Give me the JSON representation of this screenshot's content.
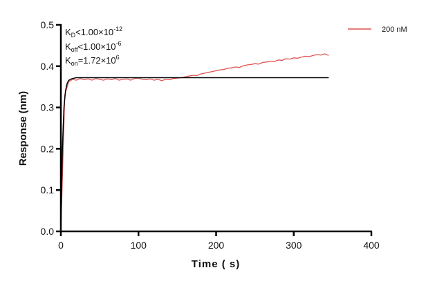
{
  "chart_data": {
    "type": "line",
    "xlabel": "Time ( s)",
    "ylabel": "Response (nm)",
    "xlim": [
      0,
      400
    ],
    "ylim": [
      0,
      0.5
    ],
    "xticks": [
      "0",
      "100",
      "200",
      "300",
      "400"
    ],
    "yticks": [
      "0.0",
      "0.1",
      "0.2",
      "0.3",
      "0.4",
      "0.5"
    ],
    "grid": false,
    "legend_position": "top-right",
    "annotations": {
      "kd": {
        "k": "K",
        "sub": "D",
        "rel": "<1.00×10",
        "exp": "-12"
      },
      "koff": {
        "k": "K",
        "sub": "off",
        "rel": "<1.00×10",
        "exp": "-6"
      },
      "kon": {
        "k": "K",
        "sub": "on",
        "rel": "=1.72×10",
        "exp": "6"
      }
    },
    "series": [
      {
        "name": "200 nM",
        "color": "#e05050",
        "x": [
          0,
          5,
          10,
          15,
          20,
          25,
          30,
          35,
          40,
          45,
          50,
          55,
          60,
          65,
          70,
          75,
          80,
          85,
          90,
          95,
          100,
          105,
          110,
          115,
          120,
          125,
          130,
          135,
          140,
          145,
          150,
          155,
          160,
          165,
          170,
          175,
          180,
          185,
          190,
          195,
          200,
          205,
          210,
          215,
          220,
          225,
          230,
          235,
          240,
          245,
          250,
          255,
          260,
          265,
          270,
          275,
          280,
          285,
          290,
          295,
          300,
          305,
          310,
          315,
          320,
          325,
          330,
          335,
          340,
          345
        ],
        "y": [
          0.0,
          0.33,
          0.362,
          0.368,
          0.366,
          0.37,
          0.367,
          0.369,
          0.366,
          0.37,
          0.368,
          0.366,
          0.369,
          0.367,
          0.37,
          0.366,
          0.368,
          0.369,
          0.366,
          0.37,
          0.371,
          0.368,
          0.367,
          0.369,
          0.366,
          0.368,
          0.365,
          0.368,
          0.367,
          0.37,
          0.371,
          0.372,
          0.374,
          0.376,
          0.378,
          0.377,
          0.381,
          0.383,
          0.385,
          0.387,
          0.389,
          0.391,
          0.392,
          0.395,
          0.396,
          0.398,
          0.397,
          0.401,
          0.403,
          0.404,
          0.406,
          0.405,
          0.409,
          0.41,
          0.412,
          0.411,
          0.415,
          0.414,
          0.418,
          0.417,
          0.42,
          0.419,
          0.422,
          0.424,
          0.423,
          0.426,
          0.428,
          0.427,
          0.43,
          0.426
        ]
      },
      {
        "color": "#000000",
        "x": [
          0,
          2,
          4,
          6,
          8,
          10,
          12,
          15,
          20,
          345
        ],
        "y": [
          0.0,
          0.2,
          0.3,
          0.34,
          0.358,
          0.365,
          0.368,
          0.37,
          0.372,
          0.372
        ]
      }
    ]
  }
}
